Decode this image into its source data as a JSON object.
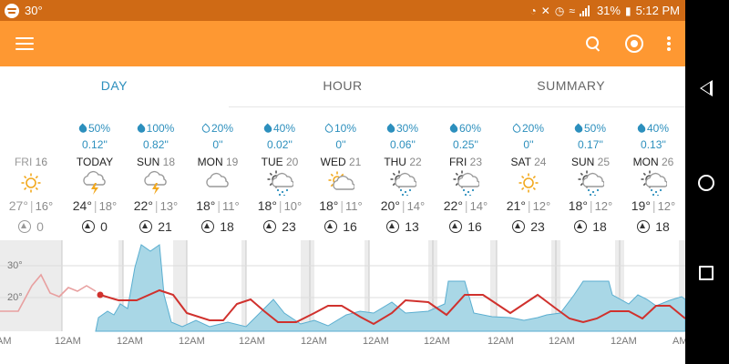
{
  "status_bar": {
    "temperature": "30°",
    "battery": "31%",
    "time": "5:12 PM"
  },
  "tabs": [
    {
      "label": "DAY",
      "active": true
    },
    {
      "label": "HOUR",
      "active": false
    },
    {
      "label": "SUMMARY",
      "active": false
    }
  ],
  "days": [
    {
      "name": "FRI",
      "date": "16",
      "pct": "",
      "amt": "",
      "icon": "sunny",
      "hi": "27°",
      "lo": "16°",
      "wind": "0",
      "past": true
    },
    {
      "name": "TODAY",
      "date": "",
      "pct": "50%",
      "amt": "0.12''",
      "icon": "thunderstorm",
      "hi": "24°",
      "lo": "18°",
      "wind": "0",
      "past": false
    },
    {
      "name": "SUN",
      "date": "18",
      "pct": "100%",
      "amt": "0.82''",
      "icon": "thunderstorm",
      "hi": "22°",
      "lo": "13°",
      "wind": "21",
      "past": false
    },
    {
      "name": "MON",
      "date": "19",
      "pct": "20%",
      "amt": "0''",
      "icon": "cloudy",
      "hi": "18°",
      "lo": "11°",
      "wind": "18",
      "past": false
    },
    {
      "name": "TUE",
      "date": "20",
      "pct": "40%",
      "amt": "0.02''",
      "icon": "partly-cloudy-rain",
      "hi": "18°",
      "lo": "10°",
      "wind": "23",
      "past": false
    },
    {
      "name": "WED",
      "date": "21",
      "pct": "10%",
      "amt": "0''",
      "icon": "partly-sunny",
      "hi": "18°",
      "lo": "11°",
      "wind": "16",
      "past": false
    },
    {
      "name": "THU",
      "date": "22",
      "pct": "30%",
      "amt": "0.06''",
      "icon": "partly-cloudy-rain",
      "hi": "20°",
      "lo": "14°",
      "wind": "13",
      "past": false
    },
    {
      "name": "FRI",
      "date": "23",
      "pct": "60%",
      "amt": "0.25''",
      "icon": "partly-cloudy-rain",
      "hi": "22°",
      "lo": "14°",
      "wind": "16",
      "past": false
    },
    {
      "name": "SAT",
      "date": "24",
      "pct": "20%",
      "amt": "0''",
      "icon": "sunny",
      "hi": "21°",
      "lo": "12°",
      "wind": "23",
      "past": false
    },
    {
      "name": "SUN",
      "date": "25",
      "pct": "50%",
      "amt": "0.17''",
      "icon": "partly-cloudy-rain",
      "hi": "18°",
      "lo": "12°",
      "wind": "18",
      "past": false
    },
    {
      "name": "MON",
      "date": "26",
      "pct": "40%",
      "amt": "0.13''",
      "icon": "partly-cloudy-rain",
      "hi": "19°",
      "lo": "12°",
      "wind": "18",
      "past": false
    }
  ],
  "chart": {
    "y_labels": [
      "30°",
      "20°"
    ],
    "x_labels": [
      "AM",
      "12AM",
      "12AM",
      "12AM",
      "12AM",
      "12AM",
      "12AM",
      "12AM",
      "12AM",
      "12AM",
      "12AM",
      "AM"
    ]
  },
  "colors": {
    "status_bar": "#cf6a15",
    "app_bar": "#fe9832",
    "accent": "#2c8fbd",
    "temp_line": "#d0312d",
    "precip_fill": "#a9d7e6"
  }
}
